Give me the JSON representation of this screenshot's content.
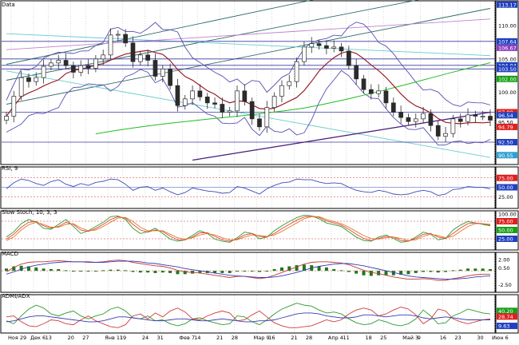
{
  "colors": {
    "background": "#ffffff",
    "grid": "#b0b0b0",
    "axis_bg": "#ffffff",
    "candle": "#2b2b2b",
    "bollinger": "#5a4fb0",
    "ma_short": "#9a1f2a",
    "ma_mid": "#22bb22",
    "ma_long": "#4a1a7a",
    "horizontal": "#3a3aa0",
    "trend_steep": "#2f6a6a",
    "trend_flat": "#66cccc",
    "rsi": "#3a4bb8",
    "stoch_k": "#e0443a",
    "stoch_d": "#2c9a2c",
    "stoch_2": "#e07a2a",
    "macd_line": "#c03a3a",
    "macd_signal": "#3a3ab0",
    "macd_hist": "#1a7a1a",
    "adx_plus": "#2c9a2c",
    "adx_minus": "#d23a3a",
    "adx": "#3a3ab0",
    "tag_red": "#e02020",
    "tag_blue": "#2040c0",
    "tag_green": "#18a018",
    "tag_cyan": "#30a0d0"
  },
  "panels": {
    "price": {
      "label": "Data"
    },
    "rsi": {
      "label": "RSI, 9"
    },
    "stoch": {
      "label": "Slow Stoch, 10, 3, 3"
    },
    "macd": {
      "label": "MACD"
    },
    "adx": {
      "label": "ADMI/ADX"
    }
  },
  "x_axis": {
    "tick_labels": [
      "Ноя 29",
      "Дек 6",
      "13",
      "20",
      "27",
      "Янв 11",
      "19",
      "24",
      "31",
      "Фев 7",
      "14",
      "21",
      "28",
      "Мар 9",
      "16",
      "21",
      "28",
      "Апр 4",
      "11",
      "18",
      "25",
      "Май 3",
      "9",
      "16",
      "23",
      "30",
      "Июн 6"
    ]
  },
  "chart_data": [
    {
      "type": "line",
      "panel": "price",
      "title": "Data",
      "y_tick_labels": [
        "113.17",
        "110.00",
        "107.64",
        "106.67",
        "105.00",
        "104.04",
        "103.50",
        "102.00",
        "100.00",
        "97.00",
        "96.54",
        "95.50",
        "94.79",
        "92.50",
        "90.55"
      ],
      "ylim": [
        89.5,
        113.5
      ],
      "series": [
        {
          "name": "price",
          "values": [
            96.4,
            99.4,
            102.2,
            101.6,
            102.2,
            103.9,
            104.4,
            104.8,
            104.0,
            103.0,
            104.0,
            103.6,
            105.0,
            105.6,
            108.6,
            108.7,
            107.4,
            104.6,
            105.6,
            104.8,
            102.4,
            103.5,
            101.0,
            98.0,
            99.0,
            100.2,
            99.3,
            98.4,
            98.2,
            97.0,
            97.2,
            100.2,
            98.6,
            96.0,
            94.8,
            97.7,
            99.4,
            101.0,
            101.6,
            104.6,
            106.8,
            107.3,
            107.0,
            106.6,
            106.8,
            106.2,
            104.0,
            102.0,
            100.4,
            99.8,
            100.2,
            98.4,
            97.0,
            96.2,
            95.6,
            96.0,
            96.8,
            95.0,
            93.4,
            93.8,
            96.0,
            95.6,
            96.6,
            96.4,
            96.4,
            95.8
          ]
        }
      ]
    },
    {
      "type": "line",
      "panel": "rsi",
      "title": "RSI, 9",
      "y_tick_labels": [
        "75.00",
        "50.00",
        "25.00"
      ],
      "ylim": [
        0,
        100
      ],
      "series": [
        {
          "name": "RSI",
          "values": [
            46,
            62,
            72,
            68,
            60,
            55,
            65,
            70,
            58,
            52,
            60,
            55,
            63,
            66,
            72,
            70,
            58,
            42,
            50,
            52,
            42,
            48,
            38,
            30,
            36,
            48,
            44,
            40,
            38,
            34,
            36,
            52,
            48,
            40,
            32,
            46,
            55,
            62,
            64,
            72,
            70,
            70,
            64,
            60,
            62,
            60,
            50,
            42,
            38,
            36,
            42,
            38,
            32,
            30,
            32,
            38,
            42,
            38,
            28,
            32,
            44,
            46,
            52,
            50,
            50,
            46
          ]
        }
      ]
    },
    {
      "type": "line",
      "panel": "stoch",
      "title": "Slow Stoch, 10, 3, 3",
      "y_tick_labels": [
        "100.00",
        "75.00",
        "50.00",
        "25.00"
      ],
      "ylim": [
        0,
        100
      ],
      "series": [
        {
          "values": [
            30,
            45,
            68,
            80,
            72,
            55,
            52,
            66,
            80,
            60,
            40,
            48,
            60,
            72,
            88,
            90,
            80,
            55,
            40,
            45,
            55,
            40,
            24,
            18,
            22,
            35,
            48,
            40,
            24,
            18,
            15,
            28,
            44,
            40,
            25,
            30,
            48,
            62,
            74,
            85,
            92,
            90,
            82,
            70,
            65,
            60,
            45,
            30,
            20,
            18,
            30,
            36,
            26,
            15,
            18,
            30,
            44,
            38,
            22,
            26,
            50,
            64,
            74,
            70,
            66,
            62
          ]
        },
        {
          "values": [
            24,
            38,
            58,
            72,
            74,
            62,
            55,
            60,
            72,
            66,
            50,
            46,
            54,
            66,
            80,
            88,
            84,
            66,
            50,
            44,
            50,
            46,
            32,
            22,
            22,
            30,
            42,
            42,
            32,
            22,
            18,
            24,
            36,
            40,
            32,
            30,
            40,
            54,
            66,
            78,
            87,
            90,
            86,
            76,
            70,
            64,
            52,
            38,
            26,
            20,
            26,
            32,
            30,
            20,
            18,
            26,
            38,
            40,
            30,
            26,
            40,
            56,
            68,
            70,
            68,
            64
          ]
        },
        {
          "values": [
            20,
            30,
            50,
            65,
            72,
            66,
            58,
            58,
            66,
            68,
            56,
            48,
            50,
            60,
            72,
            84,
            86,
            74,
            58,
            48,
            48,
            48,
            38,
            28,
            24,
            28,
            36,
            40,
            36,
            28,
            22,
            22,
            30,
            36,
            34,
            32,
            36,
            46,
            58,
            70,
            82,
            88,
            88,
            80,
            74,
            68,
            58,
            46,
            34,
            26,
            24,
            28,
            30,
            26,
            20,
            22,
            32,
            38,
            34,
            28,
            32,
            46,
            60,
            68,
            68,
            66
          ]
        }
      ]
    },
    {
      "type": "bar",
      "panel": "macd",
      "title": "MACD",
      "y_tick_labels": [
        "2.00",
        "0.50",
        "-2.50"
      ],
      "ylim": [
        -3.4,
        3.0
      ],
      "series": [
        {
          "values": [
            -0.2,
            0.6,
            1.2,
            1.5,
            1.6,
            1.6,
            1.7,
            1.8,
            1.7,
            1.6,
            1.6,
            1.5,
            1.5,
            1.6,
            1.8,
            1.9,
            1.8,
            1.5,
            1.3,
            1.1,
            0.9,
            0.8,
            0.5,
            0.1,
            -0.2,
            -0.3,
            -0.4,
            -0.6,
            -0.8,
            -1.0,
            -1.2,
            -1.0,
            -1.0,
            -1.2,
            -1.4,
            -1.2,
            -0.8,
            -0.3,
            0.2,
            0.7,
            1.2,
            1.5,
            1.6,
            1.6,
            1.5,
            1.4,
            1.1,
            0.6,
            0.1,
            -0.3,
            -0.5,
            -0.8,
            -1.1,
            -1.3,
            -1.5,
            -1.5,
            -1.4,
            -1.5,
            -1.7,
            -1.7,
            -1.4,
            -1.2,
            -0.9,
            -0.7,
            -0.6,
            -0.6
          ]
        },
        {
          "values": [
            -0.6,
            -0.2,
            0.3,
            0.7,
            1.0,
            1.2,
            1.4,
            1.5,
            1.6,
            1.6,
            1.6,
            1.6,
            1.5,
            1.5,
            1.6,
            1.7,
            1.7,
            1.7,
            1.6,
            1.4,
            1.3,
            1.1,
            0.9,
            0.7,
            0.4,
            0.2,
            0.0,
            -0.2,
            -0.4,
            -0.6,
            -0.8,
            -0.9,
            -1.0,
            -1.1,
            -1.2,
            -1.2,
            -1.1,
            -0.9,
            -0.6,
            -0.3,
            0.1,
            0.5,
            0.8,
            1.0,
            1.2,
            1.3,
            1.3,
            1.1,
            0.9,
            0.6,
            0.3,
            0.0,
            -0.3,
            -0.6,
            -0.9,
            -1.1,
            -1.2,
            -1.3,
            -1.4,
            -1.5,
            -1.5,
            -1.4,
            -1.3,
            -1.1,
            -1.0,
            -0.9
          ]
        },
        {
          "values": [
            0.4,
            0.8,
            0.9,
            0.8,
            0.6,
            0.4,
            0.3,
            0.3,
            0.1,
            0.0,
            0.0,
            -0.1,
            0.0,
            0.1,
            0.2,
            0.2,
            0.1,
            -0.2,
            -0.3,
            -0.3,
            -0.4,
            -0.3,
            -0.4,
            -0.6,
            -0.6,
            -0.5,
            -0.4,
            -0.4,
            -0.4,
            -0.4,
            -0.4,
            -0.1,
            0.0,
            -0.1,
            -0.2,
            0.0,
            0.3,
            0.6,
            0.8,
            1.0,
            1.1,
            1.0,
            0.8,
            0.6,
            0.3,
            0.1,
            -0.2,
            -0.5,
            -0.8,
            -0.9,
            -0.8,
            -0.8,
            -0.8,
            -0.7,
            -0.6,
            -0.4,
            -0.2,
            -0.2,
            -0.3,
            -0.2,
            0.1,
            0.2,
            0.4,
            0.4,
            0.4,
            0.3
          ]
        }
      ]
    },
    {
      "type": "line",
      "panel": "adx",
      "title": "ADMI/ADX",
      "y_tick_labels": [
        "40.20",
        "28.74",
        "9.63"
      ],
      "ylim": [
        0,
        70
      ],
      "series": [
        {
          "values": [
            20,
            14,
            30,
            44,
            52,
            46,
            34,
            30,
            36,
            40,
            30,
            24,
            30,
            34,
            44,
            48,
            40,
            26,
            24,
            30,
            20,
            22,
            14,
            10,
            14,
            24,
            26,
            20,
            16,
            12,
            14,
            30,
            28,
            18,
            12,
            22,
            34,
            44,
            50,
            56,
            52,
            50,
            42,
            36,
            38,
            34,
            24,
            16,
            12,
            14,
            22,
            18,
            12,
            10,
            14,
            24,
            42,
            30,
            14,
            16,
            30,
            36,
            44,
            40,
            36,
            34
          ]
        },
        {
          "values": [
            28,
            30,
            18,
            10,
            8,
            14,
            22,
            20,
            14,
            12,
            22,
            30,
            20,
            14,
            8,
            6,
            12,
            30,
            34,
            24,
            36,
            28,
            40,
            46,
            38,
            24,
            22,
            30,
            36,
            40,
            36,
            20,
            22,
            32,
            40,
            28,
            16,
            10,
            6,
            6,
            8,
            10,
            16,
            22,
            18,
            22,
            34,
            42,
            46,
            42,
            30,
            34,
            42,
            48,
            44,
            32,
            14,
            24,
            44,
            40,
            24,
            18,
            14,
            18,
            22,
            24
          ]
        },
        {
          "values": [
            18,
            20,
            24,
            28,
            30,
            30,
            28,
            26,
            24,
            22,
            20,
            18,
            18,
            20,
            24,
            28,
            28,
            26,
            24,
            22,
            20,
            20,
            22,
            24,
            24,
            22,
            20,
            20,
            22,
            24,
            22,
            20,
            18,
            18,
            20,
            20,
            22,
            26,
            30,
            34,
            36,
            36,
            34,
            30,
            28,
            26,
            26,
            28,
            32,
            32,
            30,
            28,
            30,
            32,
            32,
            30,
            26,
            24,
            26,
            28,
            26,
            24,
            22,
            22,
            22,
            22
          ]
        }
      ]
    }
  ]
}
